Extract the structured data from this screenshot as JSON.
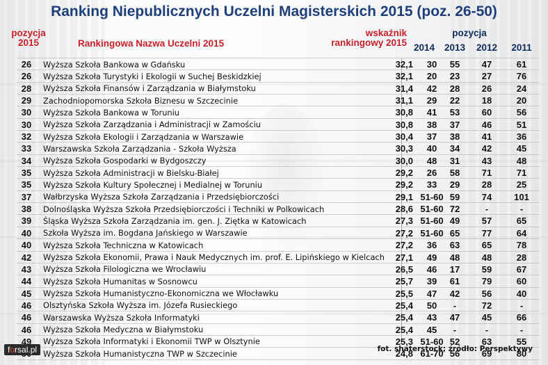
{
  "title": "Ranking Niepublicznych Uczelni Magisterskich 2015 (poz. 26-50)",
  "headers": {
    "pozycja_2015_line1": "pozycja",
    "pozycja_2015_line2": "2015",
    "name": "Rankingowa Nazwa Uczelni 2015",
    "score_line1": "wskaźnik",
    "score_line2": "rankingowy 2015",
    "pozycja_group": "pozycja",
    "years": [
      "2014",
      "2013",
      "2012",
      "2011"
    ]
  },
  "rows": [
    {
      "pos": "26",
      "name": "Wyższa Szkoła Bankowa w Gdańsku",
      "score": "32,1",
      "y2014": "30",
      "y2013": "55",
      "y2012": "47",
      "y2011": "61"
    },
    {
      "pos": "26",
      "name": "Wyższa Szkoła Turystyki i Ekologii w Suchej Beskidzkiej",
      "score": "32,1",
      "y2014": "20",
      "y2013": "23",
      "y2012": "27",
      "y2011": "76"
    },
    {
      "pos": "28",
      "name": "Wyższa Szkoła Finansów i Zarządzania w Białymstoku",
      "score": "31,4",
      "y2014": "42",
      "y2013": "28",
      "y2012": "26",
      "y2011": "24"
    },
    {
      "pos": "29",
      "name": "Zachodniopomorska Szkoła Biznesu w Szczecinie",
      "score": "31,1",
      "y2014": "29",
      "y2013": "22",
      "y2012": "18",
      "y2011": "20"
    },
    {
      "pos": "30",
      "name": "Wyższa Szkoła Bankowa w Toruniu",
      "score": "30,8",
      "y2014": "41",
      "y2013": "53",
      "y2012": "60",
      "y2011": "56"
    },
    {
      "pos": "30",
      "name": "Wyższa Szkoła Zarządzania i Administracji w Zamościu",
      "score": "30,8",
      "y2014": "38",
      "y2013": "37",
      "y2012": "46",
      "y2011": "51"
    },
    {
      "pos": "32",
      "name": "Wyższa Szkoła Ekologii i Zarządzania w Warszawie",
      "score": "30,4",
      "y2014": "37",
      "y2013": "38",
      "y2012": "41",
      "y2011": "36"
    },
    {
      "pos": "33",
      "name": "Warszawska Szkoła Zarządzania - Szkoła Wyższa",
      "score": "30,3",
      "y2014": "40",
      "y2013": "34",
      "y2012": "42",
      "y2011": "45"
    },
    {
      "pos": "34",
      "name": "Wyższa Szkoła Gospodarki w Bydgoszczy",
      "score": "30,0",
      "y2014": "48",
      "y2013": "31",
      "y2012": "43",
      "y2011": "48"
    },
    {
      "pos": "35",
      "name": "Wyższa Szkoła Administracji w Bielsku-Białej",
      "score": "29,2",
      "y2014": "26",
      "y2013": "58",
      "y2012": "71",
      "y2011": "71"
    },
    {
      "pos": "35",
      "name": "Wyższa Szkoła Kultury Społecznej i Medialnej w Toruniu",
      "score": "29,2",
      "y2014": "33",
      "y2013": "29",
      "y2012": "28",
      "y2011": "25"
    },
    {
      "pos": "37",
      "name": "Wałbrzyska Wyższa Szkoła Zarządzania i Przedsiębiorczości",
      "score": "29,1",
      "y2014": "51-60",
      "y2013": "59",
      "y2012": "74",
      "y2011": "101"
    },
    {
      "pos": "38",
      "name": "Dolnośląska Wyższa Szkoła Przedsiębiorczości i Techniki w Polkowicach",
      "score": "28,6",
      "y2014": "51-60",
      "y2013": "72",
      "y2012": "-",
      "y2011": "-"
    },
    {
      "pos": "39",
      "name": "Śląska Wyższa Szkoła Zarządzania im. gen. J. Ziętka w Katowicach",
      "score": "27,3",
      "y2014": "51-60",
      "y2013": "49",
      "y2012": "57",
      "y2011": "65"
    },
    {
      "pos": "40",
      "name": "Szkoła Wyższa im. Bogdana Jańskiego w Warszawie",
      "score": "27,2",
      "y2014": "51-60",
      "y2013": "65",
      "y2012": "77",
      "y2011": "64"
    },
    {
      "pos": "40",
      "name": "Wyższa Szkoła Techniczna w Katowicach",
      "score": "27,2",
      "y2014": "36",
      "y2013": "63",
      "y2012": "65",
      "y2011": "78"
    },
    {
      "pos": "42",
      "name": "Wyższa Szkoła Ekonomii, Prawa i Nauk Medycznych im. prof. E. Lipińskiego w Kielcach",
      "score": "27,1",
      "y2014": "49",
      "y2013": "48",
      "y2012": "48",
      "y2011": "28"
    },
    {
      "pos": "43",
      "name": "Wyższa Szkoła Filologiczna we Wrocławiu",
      "score": "26,5",
      "y2014": "46",
      "y2013": "17",
      "y2012": "59",
      "y2011": "67"
    },
    {
      "pos": "44",
      "name": "Wyższa Szkoła Humanitas w Sosnowcu",
      "score": "25,7",
      "y2014": "39",
      "y2013": "61",
      "y2012": "79",
      "y2011": "60"
    },
    {
      "pos": "45",
      "name": "Wyższa Szkoła Humanistyczno-Ekonomiczna we Włocławku",
      "score": "25,5",
      "y2014": "47",
      "y2013": "42",
      "y2012": "56",
      "y2011": "40"
    },
    {
      "pos": "46",
      "name": "Olsztyńska Szkoła Wyższa im. Józefa Rusieckiego",
      "score": "25,4",
      "y2014": "50",
      "y2013": "-",
      "y2012": "72",
      "y2011": "-"
    },
    {
      "pos": "46",
      "name": "Warszawska Wyższa Szkoła Informatyki",
      "score": "25,4",
      "y2014": "43",
      "y2013": "47",
      "y2012": "45",
      "y2011": "66"
    },
    {
      "pos": "46",
      "name": "Wyższa Szkoła Medyczna w Białymstoku",
      "score": "25,4",
      "y2014": "45",
      "y2013": "-",
      "y2012": "-",
      "y2011": "-"
    },
    {
      "pos": "49",
      "name": "Wyższa Szkoła Informatyki i Ekonomii TWP w Olsztynie",
      "score": "25,3",
      "y2014": "51-60",
      "y2013": "52",
      "y2012": "63",
      "y2011": "55"
    },
    {
      "pos": "50",
      "name": "Wyższa Szkoła Humanistyczna TWP w Szczecinie",
      "score": "24,8",
      "y2014": "61-70",
      "y2013": "56",
      "y2012": "69",
      "y2011": "80"
    }
  ],
  "logo": {
    "pre": "f",
    "o": "o",
    "post": "rsal.pl"
  },
  "credit": "fot. shaterstock;  źródło: Perspektywy"
}
